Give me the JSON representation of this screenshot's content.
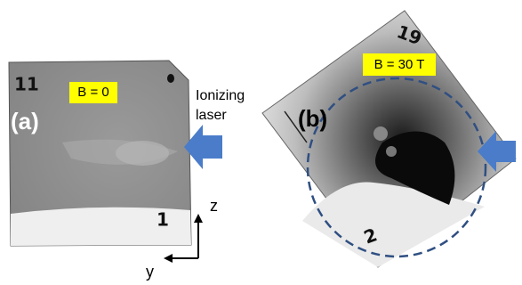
{
  "panel_a": {
    "label": "(a)",
    "field": "B = 0",
    "plate_marks": [
      "11",
      "1"
    ]
  },
  "panel_b": {
    "label": "(b)",
    "field": "B = 30 T",
    "plate_marks": [
      "19",
      "2"
    ]
  },
  "laser": {
    "line1": "Ionizing",
    "line2": "laser"
  },
  "axes": {
    "z": "z",
    "y": "y"
  }
}
